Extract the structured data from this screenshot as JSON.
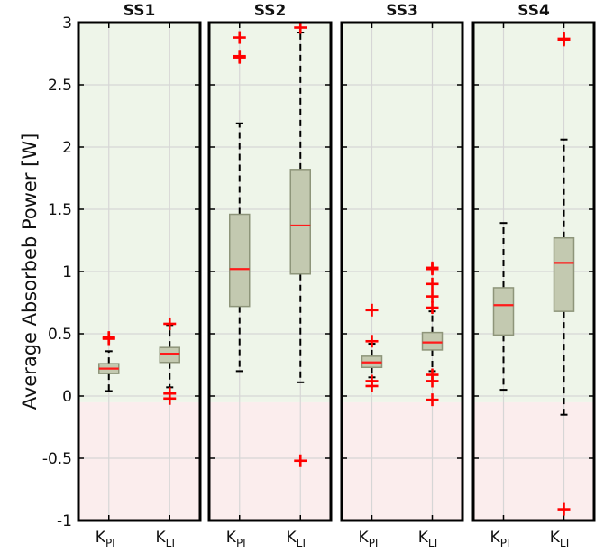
{
  "chart_data": {
    "type": "box",
    "ylabel": "Average Absorbeb Power [W]",
    "ylim": [
      -1,
      3
    ],
    "yticks": [
      -1,
      -0.5,
      0,
      0.5,
      1,
      1.5,
      2,
      2.5,
      3
    ],
    "ytick_labels": [
      "-1",
      "-0.5",
      "0",
      "0.5",
      "1",
      "1.5",
      "2",
      "2.5",
      "3"
    ],
    "grid": true,
    "background_regions": [
      {
        "from": -0.05,
        "to": 3,
        "color": "#eef5e9"
      },
      {
        "from": -1,
        "to": -0.05,
        "color": "#fbeded"
      }
    ],
    "colors": {
      "box_fill": "#c3c9b0",
      "box_edge": "#8e957a",
      "median": "#ff1a1a",
      "outlier": "#ff0000",
      "whisker": "#000000"
    },
    "category_labels": [
      {
        "main": "K",
        "sub": "PI"
      },
      {
        "main": "K",
        "sub": "LT"
      }
    ],
    "panels": [
      {
        "title": "SS1",
        "boxes": [
          {
            "q1": 0.18,
            "median": 0.22,
            "q3": 0.26,
            "whisker_low": 0.04,
            "whisker_high": 0.36,
            "outliers": [
              0.46,
              0.47
            ]
          },
          {
            "q1": 0.27,
            "median": 0.34,
            "q3": 0.39,
            "whisker_low": 0.07,
            "whisker_high": 0.57,
            "outliers": [
              0.58,
              0.02,
              -0.02
            ]
          }
        ]
      },
      {
        "title": "SS2",
        "boxes": [
          {
            "q1": 0.72,
            "median": 1.02,
            "q3": 1.46,
            "whisker_low": 0.2,
            "whisker_high": 2.19,
            "outliers": [
              2.72,
              2.73,
              2.88
            ]
          },
          {
            "q1": 0.98,
            "median": 1.37,
            "q3": 1.82,
            "whisker_low": 0.11,
            "whisker_high": 2.92,
            "outliers": [
              2.96,
              -0.52
            ]
          }
        ]
      },
      {
        "title": "SS3",
        "boxes": [
          {
            "q1": 0.23,
            "median": 0.27,
            "q3": 0.32,
            "whisker_low": 0.15,
            "whisker_high": 0.42,
            "outliers": [
              0.69,
              0.44,
              0.12,
              0.08
            ]
          },
          {
            "q1": 0.37,
            "median": 0.43,
            "q3": 0.51,
            "whisker_low": 0.2,
            "whisker_high": 0.68,
            "outliers": [
              1.03,
              1.02,
              0.9,
              0.8,
              0.71,
              0.17,
              0.12,
              -0.03
            ]
          }
        ]
      },
      {
        "title": "SS4",
        "boxes": [
          {
            "q1": 0.49,
            "median": 0.73,
            "q3": 0.87,
            "whisker_low": 0.05,
            "whisker_high": 1.39,
            "outliers": []
          },
          {
            "q1": 0.68,
            "median": 1.07,
            "q3": 1.27,
            "whisker_low": -0.15,
            "whisker_high": 2.06,
            "outliers": [
              2.86,
              2.87,
              -0.91
            ]
          }
        ]
      }
    ]
  }
}
